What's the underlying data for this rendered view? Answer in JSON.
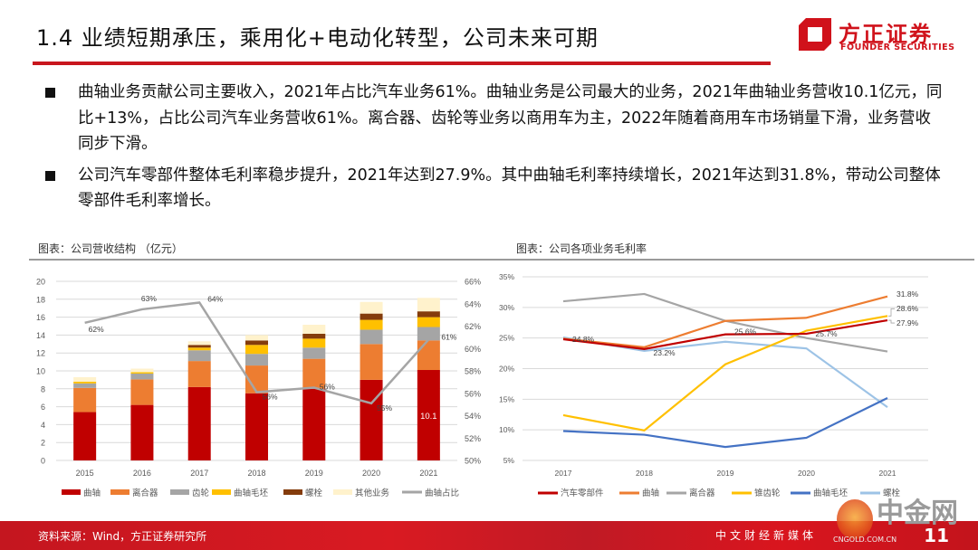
{
  "header": {
    "title": "1.4 业绩短期承压，乘用化+电动化转型，公司未来可期",
    "logo_cn": "方正证券",
    "logo_en": "FOUNDER SECURITIES",
    "accent_color": "#c8161d"
  },
  "bullets": [
    "曲轴业务贡献公司主要收入，2021年占比汽车业务61%。曲轴业务是公司最大的业务，2021年曲轴业务营收10.1亿元，同比+13%，占比公司汽车业务营收61%。离合器、齿轮等业务以商用车为主，2022年随着商用车市场销量下滑，业务营收同步下滑。",
    "公司汽车零部件整体毛利率稳步提升，2021年达到27.9%。其中曲轴毛利率持续增长，2021年达到31.8%，带动公司整体零部件毛利率增长。"
  ],
  "captions": {
    "left": "图表：公司营收结构 （亿元）",
    "right": "图表：公司各项业务毛利率"
  },
  "chart_data": [
    {
      "type": "bar",
      "stacked": true,
      "categories": [
        "2015",
        "2016",
        "2017",
        "2018",
        "2019",
        "2020",
        "2021"
      ],
      "ylim": [
        0,
        20
      ],
      "yticks": [
        "0",
        "2",
        "4",
        "6",
        "8",
        "10",
        "12",
        "14",
        "16",
        "18",
        "20"
      ],
      "y2lim": [
        50,
        66
      ],
      "y2ticks": [
        "50%",
        "52%",
        "54%",
        "56%",
        "58%",
        "60%",
        "62%",
        "64%",
        "66%"
      ],
      "grid": true,
      "legend": "bottom",
      "series": [
        {
          "name": "曲轴",
          "color": "#c00000",
          "values": [
            5.4,
            6.2,
            8.2,
            7.5,
            8.0,
            9.0,
            10.1
          ]
        },
        {
          "name": "离合器",
          "color": "#ed7d31",
          "values": [
            2.7,
            2.85,
            2.9,
            3.1,
            3.35,
            4.0,
            3.3
          ]
        },
        {
          "name": "齿轮",
          "color": "#a5a5a5",
          "values": [
            0.5,
            0.65,
            1.2,
            1.3,
            1.25,
            1.6,
            1.5
          ]
        },
        {
          "name": "曲轴毛坯",
          "color": "#ffc000",
          "values": [
            0.2,
            0.15,
            0.3,
            1.0,
            1.0,
            1.1,
            1.1
          ]
        },
        {
          "name": "螺栓",
          "color": "#843c0c",
          "values": [
            0.0,
            0.0,
            0.3,
            0.5,
            0.55,
            0.7,
            0.65
          ]
        },
        {
          "name": "其他业务",
          "color": "#fff2cc",
          "values": [
            0.5,
            0.4,
            0.4,
            0.6,
            1.0,
            1.3,
            1.5
          ]
        }
      ],
      "line": {
        "name": "曲轴占比",
        "color": "#a5a5a5",
        "axis": "right",
        "values": [
          62.3,
          63.5,
          64.1,
          56.1,
          56.5,
          55.1,
          60.8
        ],
        "labels": [
          "62%",
          "63%",
          "64%",
          "56%",
          "56%",
          "55%",
          "61%"
        ]
      },
      "annotations": [
        {
          "category": "2021",
          "series": "曲轴",
          "text": "10.1"
        }
      ]
    },
    {
      "type": "line",
      "categories": [
        "2017",
        "2018",
        "2019",
        "2020",
        "2021"
      ],
      "ylim": [
        5,
        35
      ],
      "yticks": [
        "5%",
        "10%",
        "15%",
        "20%",
        "25%",
        "30%",
        "35%"
      ],
      "grid": true,
      "legend": "bottom",
      "series": [
        {
          "name": "汽车零部件",
          "color": "#c00000",
          "values": [
            24.8,
            23.2,
            25.6,
            25.7,
            27.9
          ],
          "labels": [
            "24.8%",
            "23.2%",
            "25.6%",
            "25.7%",
            "27.9%"
          ]
        },
        {
          "name": "曲轴",
          "color": "#ed7d31",
          "values": [
            24.9,
            23.5,
            27.8,
            28.3,
            31.8
          ],
          "labels": [
            "",
            "",
            "",
            "",
            "31.8%"
          ]
        },
        {
          "name": "离合器",
          "color": "#a5a5a5",
          "values": [
            31.0,
            32.2,
            27.8,
            25.0,
            22.8
          ]
        },
        {
          "name": "锥齿轮",
          "color": "#ffc000",
          "values": [
            12.4,
            9.9,
            20.7,
            26.2,
            28.6
          ],
          "labels": [
            "",
            "",
            "",
            "",
            "28.6%"
          ]
        },
        {
          "name": "曲轴毛坯",
          "color": "#4472c4",
          "values": [
            9.8,
            9.2,
            7.2,
            8.7,
            15.2
          ]
        },
        {
          "name": "螺栓",
          "color": "#9dc3e6",
          "values": [
            25.1,
            22.9,
            24.4,
            23.3,
            13.7
          ]
        }
      ]
    }
  ],
  "footer": {
    "source": "资料来源：Wind，方正证券研究所",
    "page": "11"
  },
  "watermark": {
    "cn": "中金网",
    "en": "CNGOLD.COM.CN",
    "sub": "中文财经新媒体"
  }
}
